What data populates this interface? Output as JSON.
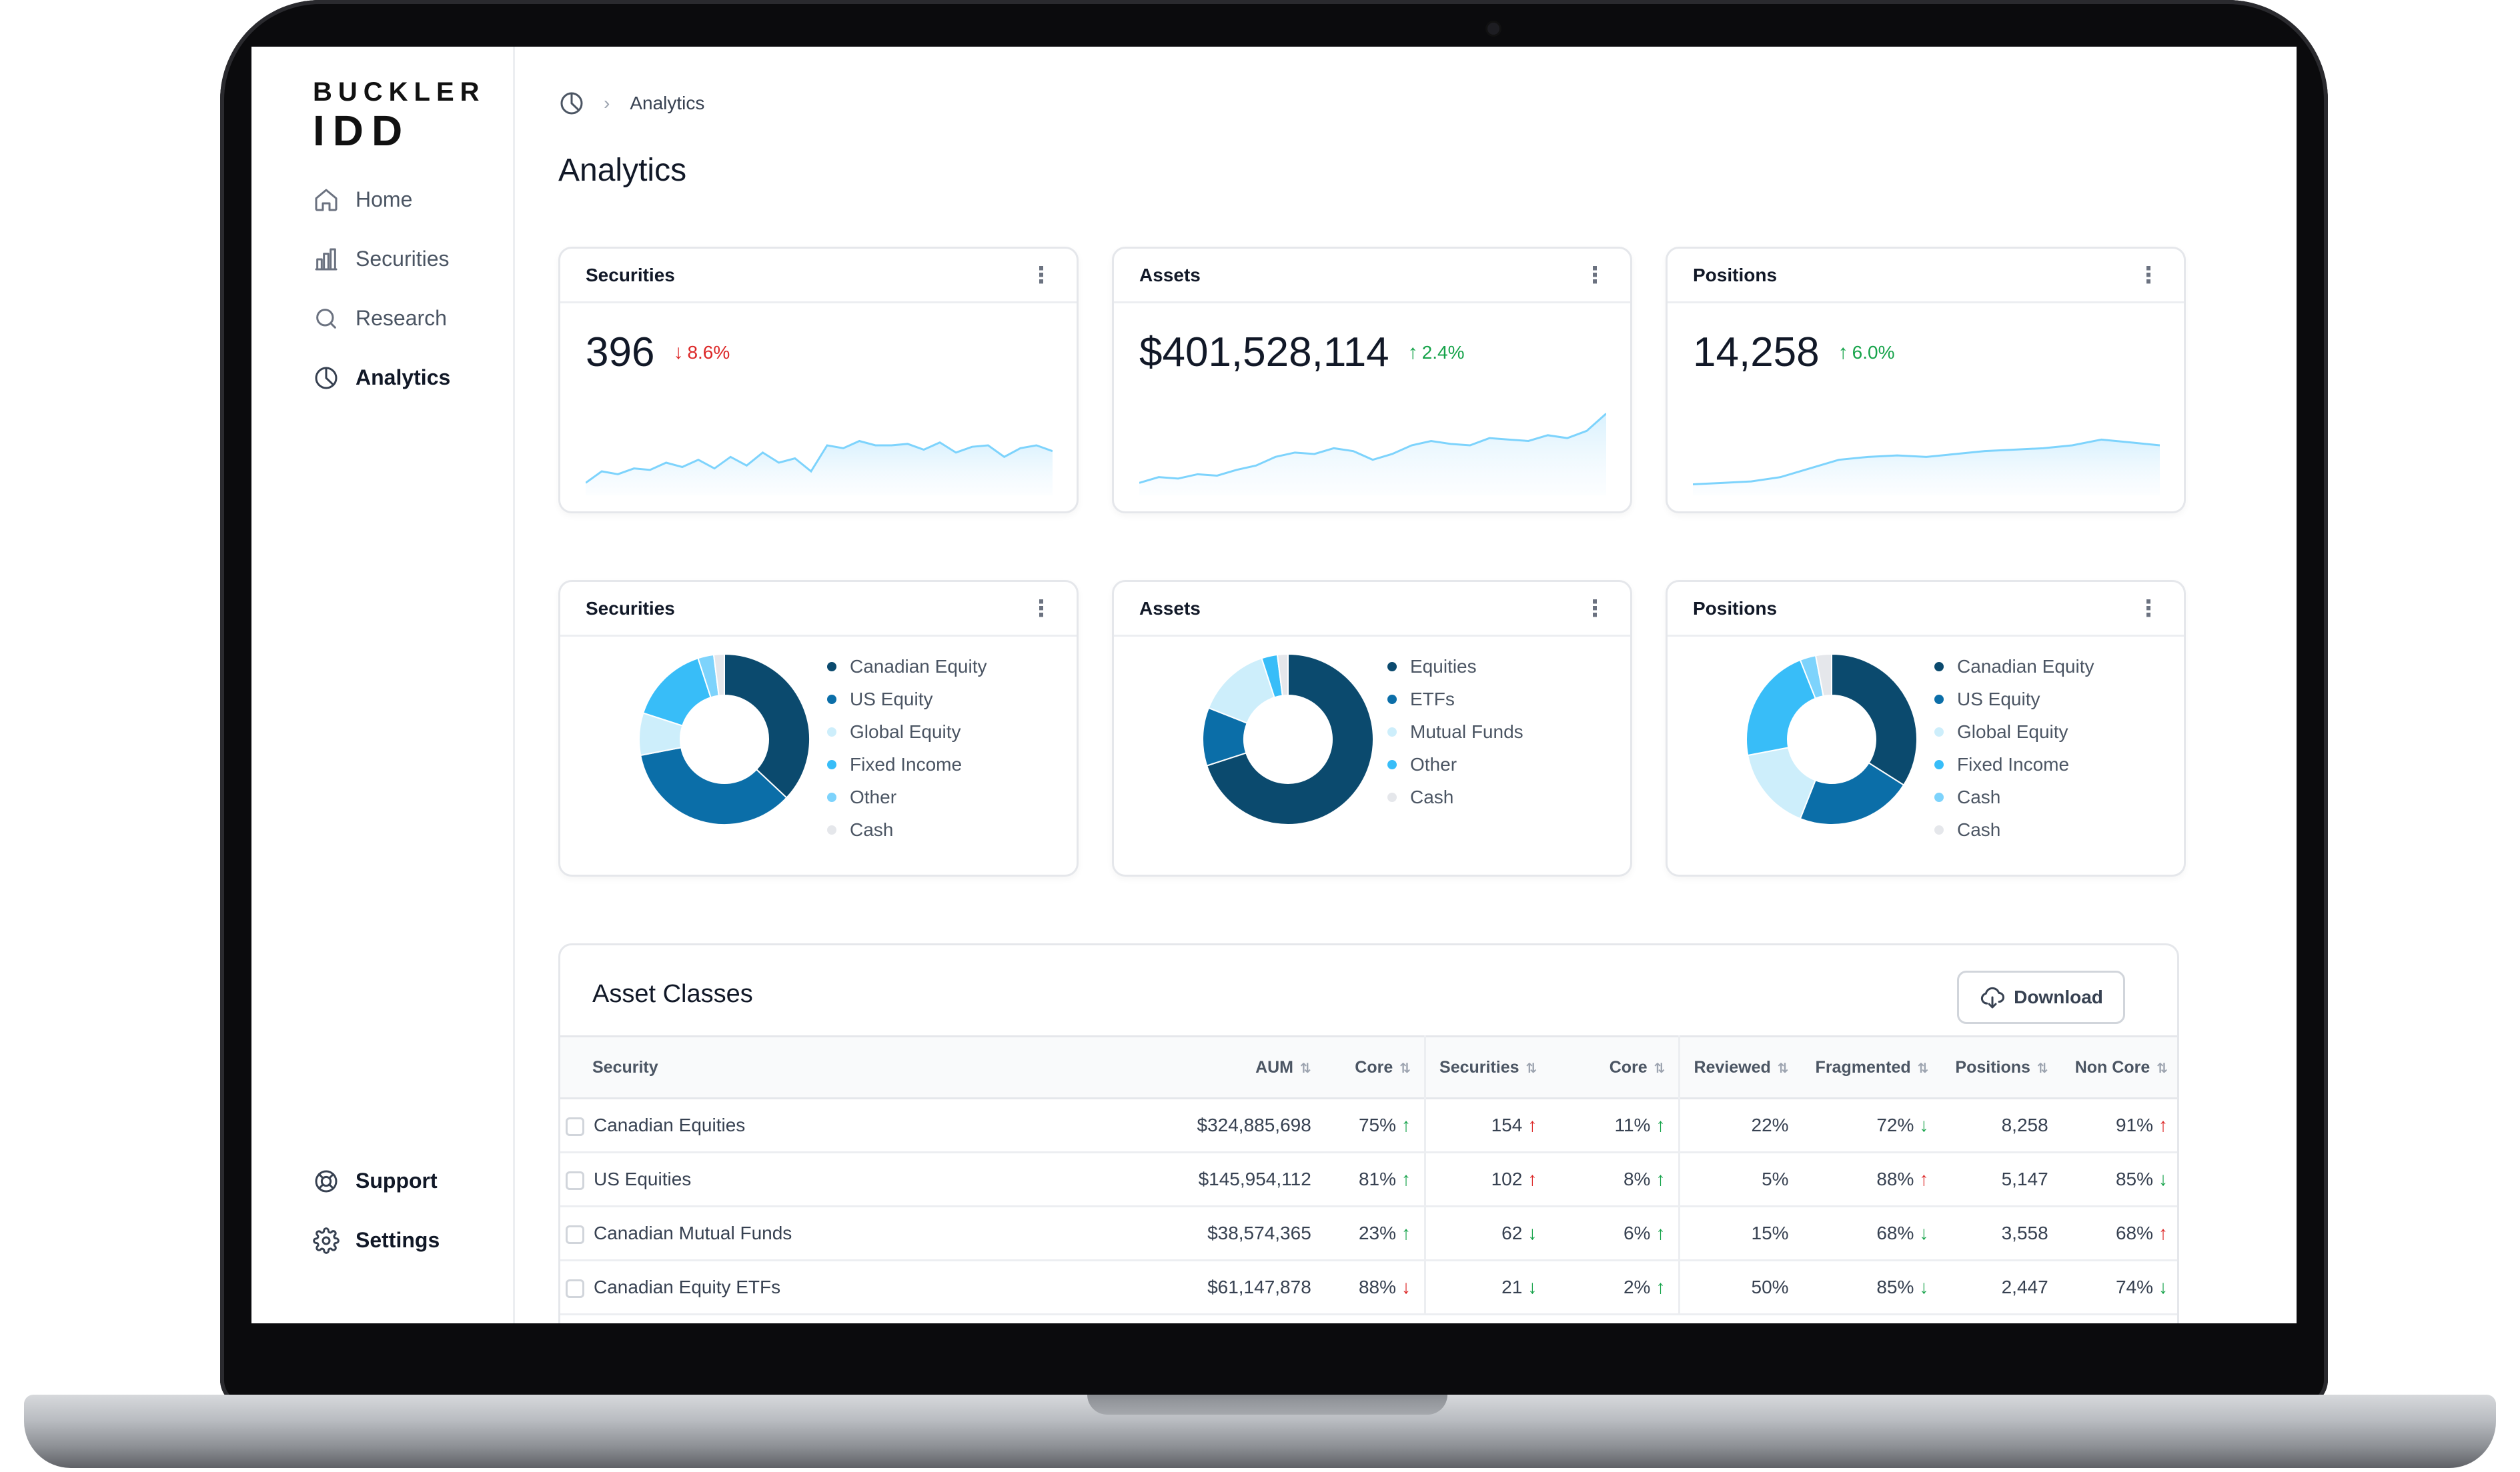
{
  "brand": {
    "line1": "BUCKLER",
    "line2": "IDD"
  },
  "sidebar": {
    "items": [
      {
        "label": "Home",
        "icon": "home-icon"
      },
      {
        "label": "Securities",
        "icon": "bar-chart-icon"
      },
      {
        "label": "Research",
        "icon": "search-icon"
      },
      {
        "label": "Analytics",
        "icon": "pie-chart-icon",
        "active": true
      }
    ],
    "bottom": [
      {
        "label": "Support",
        "icon": "lifebuoy-icon"
      },
      {
        "label": "Settings",
        "icon": "gear-icon"
      }
    ]
  },
  "breadcrumb": {
    "current": "Analytics"
  },
  "page": {
    "title": "Analytics"
  },
  "stats": [
    {
      "title": "Securities",
      "value": "396",
      "change": "8.6%",
      "direction": "down",
      "spark": [
        4,
        12,
        10,
        14,
        13,
        18,
        15,
        20,
        14,
        22,
        16,
        25,
        18,
        21,
        12,
        30,
        28,
        33,
        30,
        30,
        31,
        27,
        32,
        25,
        29,
        30,
        22,
        28,
        30,
        26
      ]
    },
    {
      "title": "Assets",
      "value": "$401,528,114",
      "change": "2.4%",
      "direction": "up",
      "spark": [
        4,
        8,
        7,
        10,
        9,
        13,
        16,
        22,
        25,
        24,
        28,
        26,
        20,
        24,
        30,
        33,
        31,
        30,
        35,
        34,
        33,
        37,
        35,
        40,
        52
      ]
    },
    {
      "title": "Positions",
      "value": "14,258",
      "change": "6.0%",
      "direction": "up",
      "spark": [
        3,
        4,
        5,
        8,
        14,
        20,
        22,
        23,
        22,
        24,
        26,
        27,
        28,
        30,
        34,
        32,
        30
      ]
    }
  ],
  "donuts": [
    {
      "title": "Securities",
      "legend": [
        "Canadian Equity",
        "US Equity",
        "Global Equity",
        "Fixed Income",
        "Other",
        "Cash"
      ],
      "values": [
        37,
        35,
        8,
        15,
        3,
        2
      ],
      "colors": [
        "#0b4a6e",
        "#0b6ea8",
        "#cdeefb",
        "#38bdf8",
        "#7dd3fc",
        "#e5e7eb"
      ]
    },
    {
      "title": "Assets",
      "legend": [
        "Equities",
        "ETFs",
        "Mutual Funds",
        "Other",
        "Cash"
      ],
      "values": [
        70,
        11,
        14,
        3,
        2
      ],
      "colors": [
        "#0b4a6e",
        "#0b6ea8",
        "#cdeefb",
        "#38bdf8",
        "#e5e7eb"
      ]
    },
    {
      "title": "Positions",
      "legend": [
        "Canadian Equity",
        "US Equity",
        "Global Equity",
        "Fixed Income",
        "Cash",
        "Cash"
      ],
      "values": [
        34,
        22,
        16,
        22,
        3,
        3
      ],
      "colors": [
        "#0b4a6e",
        "#0b6ea8",
        "#cdeefb",
        "#38bdf8",
        "#7dd3fc",
        "#e5e7eb"
      ]
    }
  ],
  "table": {
    "title": "Asset Classes",
    "download_label": "Download",
    "columns": [
      "Security",
      "AUM",
      "Core",
      "Securities",
      "Core",
      "Reviewed",
      "Fragmented",
      "Positions",
      "Non Core"
    ],
    "rows": [
      {
        "security": "Canadian Equities",
        "aum": "$324,885,698",
        "core": "75%",
        "core_dir": "up",
        "securities": "154",
        "securities_dir": "up-red",
        "core2": "11%",
        "core2_dir": "up",
        "reviewed": "22%",
        "fragmented": "72%",
        "fragmented_dir": "down",
        "positions": "8,258",
        "noncore": "91%",
        "noncore_dir": "up-red"
      },
      {
        "security": "US Equities",
        "aum": "$145,954,112",
        "core": "81%",
        "core_dir": "up",
        "securities": "102",
        "securities_dir": "up-red",
        "core2": "8%",
        "core2_dir": "up",
        "reviewed": "5%",
        "fragmented": "88%",
        "fragmented_dir": "up-red",
        "positions": "5,147",
        "noncore": "85%",
        "noncore_dir": "down"
      },
      {
        "security": "Canadian Mutual Funds",
        "aum": "$38,574,365",
        "core": "23%",
        "core_dir": "up",
        "securities": "62",
        "securities_dir": "down",
        "core2": "6%",
        "core2_dir": "up",
        "reviewed": "15%",
        "fragmented": "68%",
        "fragmented_dir": "down",
        "positions": "3,558",
        "noncore": "68%",
        "noncore_dir": "up-red"
      },
      {
        "security": "Canadian Equity ETFs",
        "aum": "$61,147,878",
        "core": "88%",
        "core_dir": "down-red",
        "securities": "21",
        "securities_dir": "down",
        "core2": "2%",
        "core2_dir": "up",
        "reviewed": "50%",
        "fragmented": "85%",
        "fragmented_dir": "down",
        "positions": "2,447",
        "noncore": "74%",
        "noncore_dir": "down"
      }
    ]
  }
}
